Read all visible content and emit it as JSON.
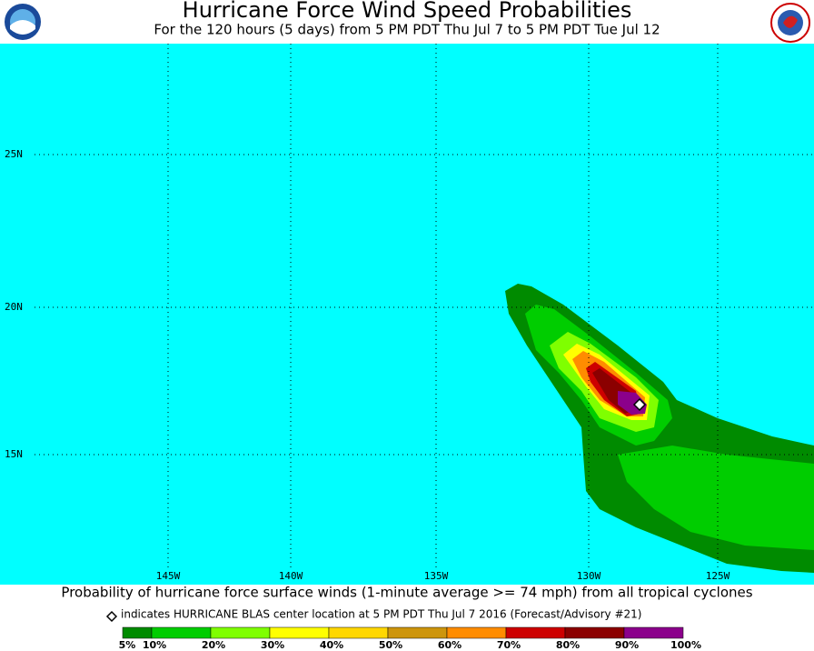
{
  "header": {
    "title": "Hurricane Force Wind Speed Probabilities",
    "subtitle": "For the 120 hours (5 days) from 5 PM PDT Thu Jul 7 to 5 PM PDT Tue Jul 12"
  },
  "map": {
    "lat_labels": [
      "25N",
      "20N",
      "15N"
    ],
    "lon_labels": [
      "145W",
      "140W",
      "135W",
      "130W",
      "125W"
    ]
  },
  "footer": {
    "caption": "Probability of hurricane force surface winds (1-minute average >= 74 mph) from all tropical cyclones",
    "note": "indicates HURRICANE BLAS center location at 5 PM PDT Thu Jul 7 2016 (Forecast/Advisory #21)"
  },
  "legend": {
    "labels": [
      "5%",
      "10%",
      "20%",
      "30%",
      "40%",
      "50%",
      "60%",
      "70%",
      "80%",
      "90%",
      "100%"
    ],
    "colors": [
      "#008b00",
      "#00cd00",
      "#7fff00",
      "#ffff00",
      "#ffd700",
      "#cd950c",
      "#ff8c00",
      "#cd0000",
      "#8b0000",
      "#8b008b"
    ]
  }
}
